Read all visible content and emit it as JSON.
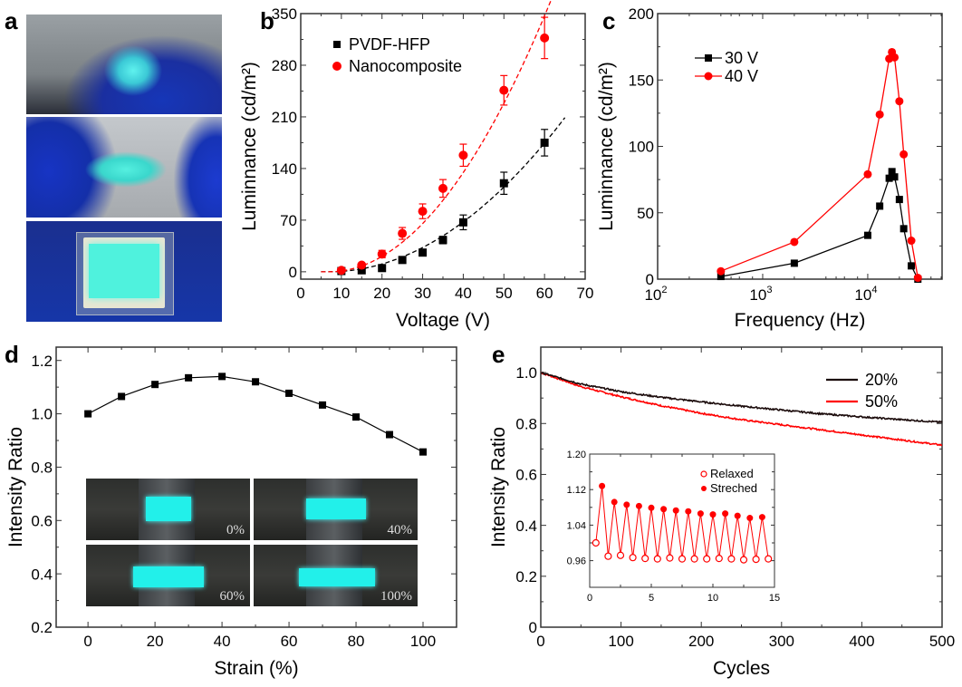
{
  "panels": {
    "a": {
      "letter": "a",
      "photos": [
        "bent-device-glowing",
        "twisted-device-glowing",
        "stretched-device-glowing"
      ]
    },
    "b": {
      "letter": "b"
    },
    "c": {
      "letter": "c"
    },
    "d": {
      "letter": "d",
      "inset_labels": [
        "0%",
        "40%",
        "60%",
        "100%"
      ]
    },
    "e": {
      "letter": "e"
    }
  },
  "colors": {
    "black": "#000000",
    "red": "#ff0000",
    "cyan_glow": "#22f0ea"
  },
  "chart_data": [
    {
      "id": "b",
      "type": "scatter",
      "xlabel": "Voltage (V)",
      "ylabel": "Luminnance (cd/m²)",
      "xlim": [
        0,
        70
      ],
      "ylim": [
        -10,
        350
      ],
      "xticks": [
        0,
        10,
        20,
        30,
        40,
        50,
        60,
        70
      ],
      "yticks": [
        0,
        70,
        140,
        210,
        280,
        350
      ],
      "legend": "top-left",
      "series": [
        {
          "name": "PVDF-HFP",
          "color": "#000000",
          "marker": "square",
          "fit": "dashed",
          "x": [
            10,
            15,
            20,
            25,
            30,
            35,
            40,
            50,
            60
          ],
          "y": [
            1,
            2,
            5,
            16,
            26,
            43,
            67,
            120,
            175
          ],
          "err": [
            0,
            0,
            0,
            0,
            0,
            5,
            10,
            15,
            18
          ],
          "fit_range": [
            5,
            65
          ]
        },
        {
          "name": "Nanocomposite",
          "color": "#ff0000",
          "marker": "circle",
          "fit": "dashed",
          "x": [
            10,
            15,
            20,
            25,
            30,
            35,
            40,
            50,
            60
          ],
          "y": [
            2,
            9,
            24,
            52,
            82,
            113,
            158,
            246,
            317
          ],
          "err": [
            0,
            0,
            5,
            8,
            10,
            12,
            15,
            20,
            28
          ],
          "fit_range": [
            5,
            63
          ]
        }
      ]
    },
    {
      "id": "c",
      "type": "line",
      "xlabel": "Frequency (Hz)",
      "ylabel": "Luminnance (cd/m²)",
      "xscale": "log",
      "xlim": [
        100,
        51000
      ],
      "ylim": [
        0,
        200
      ],
      "xticks": [
        100,
        1000,
        10000
      ],
      "xtick_labels": [
        [
          "10",
          "2"
        ],
        [
          "10",
          "3"
        ],
        [
          "10",
          "4"
        ]
      ],
      "yticks": [
        0,
        50,
        100,
        150,
        200
      ],
      "legend": "top-left",
      "series": [
        {
          "name": "30 V",
          "color": "#000000",
          "marker": "square",
          "x": [
            400,
            2000,
            10000,
            13000,
            16000,
            17000,
            18000,
            20000,
            22000,
            26000,
            30000
          ],
          "y": [
            2,
            12,
            33,
            55,
            76,
            81,
            77,
            60,
            38,
            10,
            0
          ]
        },
        {
          "name": "40 V",
          "color": "#ff0000",
          "marker": "circle",
          "x": [
            400,
            2000,
            10000,
            13000,
            16000,
            17000,
            18000,
            20000,
            22000,
            26000,
            30000
          ],
          "y": [
            6,
            28,
            79,
            124,
            166,
            171,
            167,
            134,
            94,
            29,
            1
          ]
        }
      ]
    },
    {
      "id": "d",
      "type": "line",
      "xlabel": "Strain (%)",
      "ylabel": "Intensity Ratio",
      "xlim": [
        -9.5,
        110
      ],
      "ylim": [
        0.2,
        1.25
      ],
      "xticks": [
        0,
        20,
        40,
        60,
        80,
        100
      ],
      "yticks": [
        0.2,
        0.4,
        0.6,
        0.8,
        1.0,
        1.2
      ],
      "ytick_labels": [
        "0.2",
        "0.4",
        "0.6",
        "0.8",
        "1.0",
        "1.2"
      ],
      "series": [
        {
          "name": "Intensity Ratio",
          "color": "#000000",
          "marker": "square",
          "x": [
            0,
            10,
            20,
            30,
            40,
            50,
            60,
            70,
            80,
            90,
            100
          ],
          "y": [
            1.0,
            1.065,
            1.11,
            1.135,
            1.14,
            1.12,
            1.077,
            1.033,
            0.988,
            0.922,
            0.857
          ]
        }
      ]
    },
    {
      "id": "e",
      "type": "line",
      "xlabel": "Cycles",
      "ylabel": "Intensity Ratio",
      "xlim": [
        0,
        500
      ],
      "ylim": [
        0,
        1.1
      ],
      "xticks": [
        0,
        100,
        200,
        300,
        400,
        500
      ],
      "yticks": [
        0,
        0.2,
        0.4,
        0.6,
        0.8,
        1.0
      ],
      "ytick_labels": [
        "0",
        "0.2",
        "0.4",
        "0.6",
        "0.8",
        "1.0"
      ],
      "legend": "top-right",
      "series": [
        {
          "name": "20%",
          "color": "#1a0a0a",
          "x": [
            0,
            50,
            100,
            150,
            200,
            250,
            300,
            350,
            400,
            450,
            500
          ],
          "y": [
            1.0,
            0.955,
            0.925,
            0.903,
            0.885,
            0.868,
            0.853,
            0.838,
            0.826,
            0.815,
            0.805
          ]
        },
        {
          "name": "50%",
          "color": "#ff0000",
          "x": [
            0,
            50,
            100,
            150,
            200,
            250,
            300,
            350,
            400,
            450,
            500
          ],
          "y": [
            1.0,
            0.945,
            0.905,
            0.87,
            0.84,
            0.815,
            0.795,
            0.775,
            0.755,
            0.735,
            0.715
          ]
        }
      ],
      "inset": {
        "type": "line",
        "xlim": [
          0,
          15
        ],
        "ylim": [
          0.9,
          1.2
        ],
        "xticks": [
          0,
          5,
          10,
          15
        ],
        "yticks": [
          0.96,
          1.04,
          1.12,
          1.2
        ],
        "ytick_labels": [
          "0.96",
          "1.04",
          "1.12",
          "1.20"
        ],
        "legend": "top-right",
        "series": [
          {
            "name": "Relaxed",
            "color": "#ff0000",
            "marker": "open-circle",
            "x": [
              0.5,
              1.5,
              2.5,
              3.5,
              4.5,
              5.5,
              6.5,
              7.5,
              8.5,
              9.5,
              10.5,
              11.5,
              12.5,
              13.5,
              14.5
            ],
            "y": [
              1.0,
              0.97,
              0.972,
              0.967,
              0.965,
              0.964,
              0.966,
              0.964,
              0.964,
              0.964,
              0.965,
              0.964,
              0.962,
              0.963,
              0.964
            ]
          },
          {
            "name": "Streched",
            "color": "#ff0000",
            "marker": "filled-circle",
            "x": [
              1,
              2,
              3,
              4,
              5,
              6,
              7,
              8,
              9,
              10,
              11,
              12,
              13,
              14
            ],
            "y": [
              1.128,
              1.092,
              1.086,
              1.083,
              1.079,
              1.076,
              1.073,
              1.071,
              1.066,
              1.064,
              1.066,
              1.061,
              1.056,
              1.058
            ]
          }
        ]
      }
    }
  ]
}
